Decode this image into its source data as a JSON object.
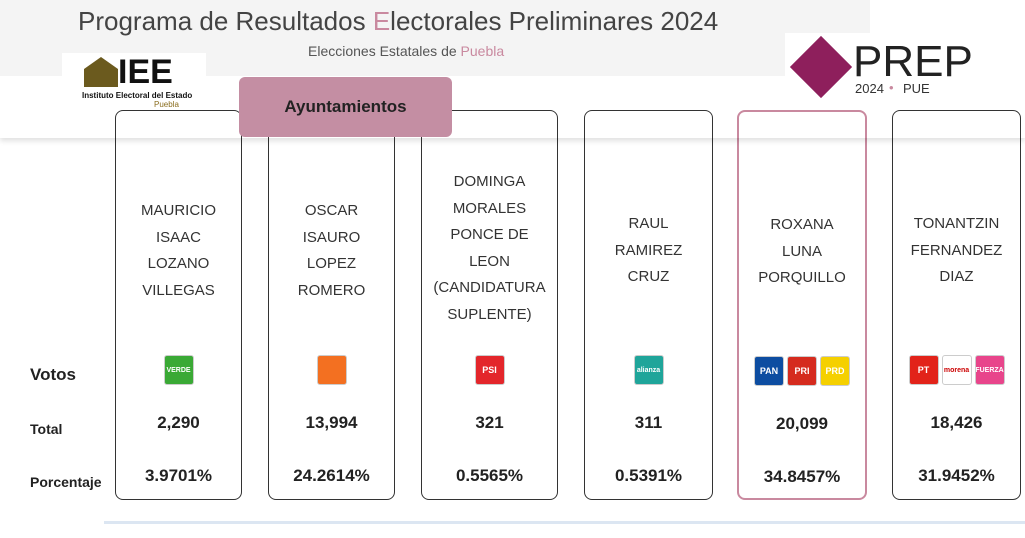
{
  "header": {
    "title_parts": [
      "Programa de Resultados ",
      "E",
      "lectorales Preliminares 2024"
    ],
    "subtitle_parts": [
      "Elecciones Estatales de ",
      "Puebla"
    ],
    "iee_logo": {
      "name": "IEE",
      "caption": "Instituto Electoral del Estado",
      "place": "Puebla"
    },
    "prep_logo": {
      "name": "PREP",
      "year": "2024",
      "place": "PUE"
    },
    "tab": "Ayuntamientos"
  },
  "row_labels": {
    "section": "Votos",
    "total": "Total",
    "percent": "Porcentaje"
  },
  "candidates": [
    {
      "name_lines": [
        "MAURICIO",
        "ISAAC",
        "LOZANO",
        "VILLEGAS"
      ],
      "logos": [
        {
          "text": "VERDE",
          "color": "#3aa935"
        }
      ],
      "total": "2,290",
      "percent": "3.9701%"
    },
    {
      "name_lines": [
        "OSCAR",
        "ISAURO",
        "LOPEZ",
        "ROMERO"
      ],
      "logos": [
        {
          "color": "#f37021"
        }
      ],
      "total": "13,994",
      "percent": "24.2614%"
    },
    {
      "name_lines": [
        "DOMINGA",
        "MORALES",
        "PONCE DE",
        "LEON",
        "(CANDIDATURA",
        "SUPLENTE)"
      ],
      "logos": [
        {
          "text": "PSI",
          "color": "#e3262b"
        }
      ],
      "total": "321",
      "percent": "0.5565%"
    },
    {
      "name_lines": [
        "RAUL",
        "RAMIREZ",
        "CRUZ"
      ],
      "logos": [
        {
          "text": "alianza",
          "color": "#1fa59a"
        }
      ],
      "total": "311",
      "percent": "0.5391%"
    },
    {
      "name_lines": [
        "ROXANA",
        "LUNA",
        "PORQUILLO"
      ],
      "logos": [
        {
          "text": "PAN",
          "color": "#0d4da1"
        },
        {
          "text": "PRI",
          "color": "#d52b1e"
        },
        {
          "text": "PRD",
          "color": "#f5d000"
        }
      ],
      "total": "20,099",
      "percent": "34.8457%",
      "highlight": true
    },
    {
      "name_lines": [
        "TONANTZIN",
        "FERNANDEZ",
        "DIAZ"
      ],
      "logos": [
        {
          "text": "PT",
          "color": "#e2231a"
        },
        {
          "text": "morena",
          "color": "#ffffff"
        },
        {
          "text": "FUERZA",
          "color": "#e8458b"
        }
      ],
      "total": "18,426",
      "percent": "31.9452%"
    }
  ]
}
